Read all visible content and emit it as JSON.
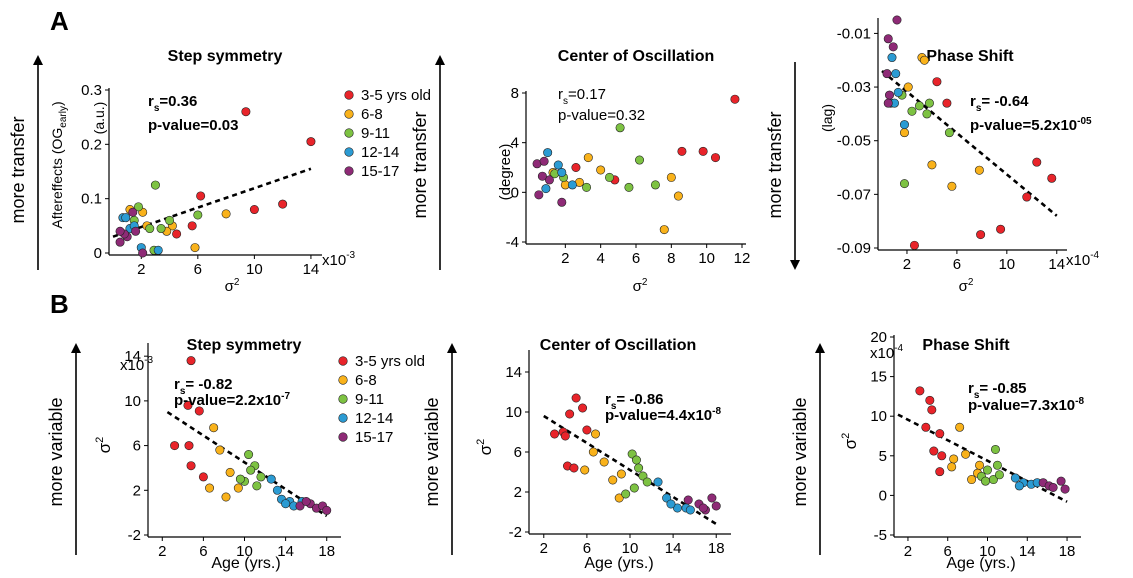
{
  "panel_letters": {
    "a": "A",
    "b": "B"
  },
  "row_a_arrow_labels": {
    "left": "more transfer",
    "middle": "more transfer",
    "right": "more transfer"
  },
  "row_b_arrow_labels": {
    "left": "more variable",
    "middle": "more variable",
    "right": "more variable"
  },
  "legend": {
    "items": [
      {
        "label": "3-5 yrs old",
        "color": "#e8242a"
      },
      {
        "label": "6-8",
        "color": "#f9b21b"
      },
      {
        "label": "9-11",
        "color": "#7dc242"
      },
      {
        "label": "12-14",
        "color": "#2b9bd3"
      },
      {
        "label": "15-17",
        "color": "#8e2a76"
      }
    ]
  },
  "chart_data": [
    {
      "id": "a1",
      "type": "scatter",
      "title": "Step symmetry",
      "xlabel": "σ2",
      "ylabel": "Aftereffects (OGearly) (a.u.)",
      "x_multiplier": "x10-3",
      "xlim": [
        0,
        14.5
      ],
      "ylim": [
        0,
        0.3
      ],
      "xticks": [
        2,
        6,
        10,
        14
      ],
      "yticks": [
        0,
        0.1,
        0.2,
        0.3
      ],
      "xtick_labels": [
        "2",
        "6",
        "10",
        "14"
      ],
      "ytick_labels": [
        "0",
        "0.1",
        "0.2",
        "0.3"
      ],
      "stat": {
        "rs": "0.36",
        "p": "0.03",
        "p_exp": ""
      },
      "fit": [
        [
          0,
          0.03
        ],
        [
          14,
          0.155
        ]
      ],
      "points": [
        [
          9.4,
          0.26,
          0
        ],
        [
          14,
          0.205,
          0
        ],
        [
          6.2,
          0.105,
          0
        ],
        [
          12,
          0.09,
          0
        ],
        [
          10,
          0.08,
          0
        ],
        [
          5.6,
          0.05,
          0
        ],
        [
          4.5,
          0.035,
          0
        ],
        [
          1.2,
          0.08,
          1
        ],
        [
          2.1,
          0.075,
          1
        ],
        [
          4.2,
          0.05,
          1
        ],
        [
          3.8,
          0.04,
          1
        ],
        [
          8,
          0.072,
          1
        ],
        [
          5.8,
          0.01,
          1
        ],
        [
          2.4,
          0.05,
          1
        ],
        [
          3,
          0.125,
          2
        ],
        [
          1.5,
          0.06,
          2
        ],
        [
          4,
          0.06,
          2
        ],
        [
          6,
          0.07,
          2
        ],
        [
          2.6,
          0.045,
          2
        ],
        [
          1.8,
          0.085,
          2
        ],
        [
          3.4,
          0.045,
          2
        ],
        [
          2.9,
          0.005,
          2
        ],
        [
          0.7,
          0.065,
          3
        ],
        [
          1.2,
          0.045,
          3
        ],
        [
          2,
          0.01,
          3
        ],
        [
          3.2,
          0.005,
          3
        ],
        [
          0.9,
          0.065,
          3
        ],
        [
          1.5,
          0.05,
          3
        ],
        [
          0.5,
          0.02,
          4
        ],
        [
          1.0,
          0.03,
          4
        ],
        [
          1.6,
          0.04,
          4
        ],
        [
          0.8,
          0.035,
          4
        ],
        [
          1.4,
          0.075,
          4
        ],
        [
          0.5,
          0.04,
          4
        ],
        [
          2.1,
          0.0,
          4
        ]
      ]
    },
    {
      "id": "a2",
      "type": "scatter",
      "title": "Center of Oscillation",
      "xlabel": "σ2",
      "ylabel": "(degree)",
      "x_multiplier": "",
      "xlim": [
        0,
        12
      ],
      "ylim": [
        -4,
        8
      ],
      "xticks": [
        2,
        4,
        6,
        8,
        10,
        12
      ],
      "yticks": [
        -4,
        0,
        4,
        8
      ],
      "xtick_labels": [
        "2",
        "4",
        "6",
        "8",
        "10",
        "12"
      ],
      "ytick_labels": [
        "-4",
        "0",
        "4",
        "8"
      ],
      "stat": {
        "rs": "0.17",
        "p": "0.32",
        "p_exp": ""
      },
      "fit": [],
      "points": [
        [
          11.6,
          7.5,
          0
        ],
        [
          8.6,
          3.3,
          0
        ],
        [
          9.8,
          3.3,
          0
        ],
        [
          10.5,
          2.8,
          0
        ],
        [
          4.8,
          1.0,
          0
        ],
        [
          2.6,
          2.0,
          0
        ],
        [
          3.3,
          2.8,
          1
        ],
        [
          1.3,
          1.6,
          1
        ],
        [
          2.0,
          0.6,
          1
        ],
        [
          2.8,
          0.8,
          1
        ],
        [
          4.0,
          1.8,
          1
        ],
        [
          7.6,
          -3.0,
          1
        ],
        [
          8.4,
          -0.3,
          1
        ],
        [
          8.0,
          1.2,
          1
        ],
        [
          5.1,
          5.2,
          2
        ],
        [
          6.2,
          2.6,
          2
        ],
        [
          4.5,
          1.2,
          2
        ],
        [
          5.6,
          0.4,
          2
        ],
        [
          7.1,
          0.6,
          2
        ],
        [
          3.2,
          0.4,
          2
        ],
        [
          1.9,
          1.2,
          2
        ],
        [
          1.4,
          1.5,
          2
        ],
        [
          1.0,
          3.2,
          3
        ],
        [
          1.6,
          2.2,
          3
        ],
        [
          2.4,
          0.6,
          3
        ],
        [
          0.9,
          0.3,
          3
        ],
        [
          1.8,
          1.6,
          3
        ],
        [
          0.4,
          2.3,
          4
        ],
        [
          0.8,
          2.5,
          4
        ],
        [
          1.1,
          1.0,
          4
        ],
        [
          0.5,
          -0.2,
          4
        ],
        [
          0.7,
          1.3,
          4
        ],
        [
          1.8,
          -0.8,
          4
        ]
      ]
    },
    {
      "id": "a3",
      "type": "scatter",
      "title": "Phase Shift",
      "xlabel": "σ2",
      "ylabel": "(lag)",
      "x_multiplier": "x10-4",
      "xlim": [
        0,
        14.5
      ],
      "ylim": [
        -0.09,
        -0.005
      ],
      "xticks": [
        2,
        6,
        10,
        14
      ],
      "yticks": [
        -0.09,
        -0.07,
        -0.05,
        -0.03,
        -0.01
      ],
      "xtick_labels": [
        "2",
        "6",
        "10",
        "14"
      ],
      "ytick_labels": [
        "-0.09",
        "-0.07",
        "-0.05",
        "-0.03",
        "-0.01"
      ],
      "stat": {
        "rs": "-0.64",
        "p": "5.2x10",
        "p_exp": "-05"
      },
      "fit": [
        [
          0,
          -0.024
        ],
        [
          14,
          -0.078
        ]
      ],
      "points": [
        [
          2.6,
          -0.089,
          0
        ],
        [
          7.9,
          -0.085,
          0
        ],
        [
          9.5,
          -0.083,
          0
        ],
        [
          12.4,
          -0.058,
          0
        ],
        [
          13.6,
          -0.064,
          0
        ],
        [
          11.6,
          -0.071,
          0
        ],
        [
          5.2,
          -0.036,
          0
        ],
        [
          4.4,
          -0.028,
          0
        ],
        [
          3.2,
          -0.019,
          1
        ],
        [
          3.4,
          -0.02,
          1
        ],
        [
          2.1,
          -0.03,
          1
        ],
        [
          4.0,
          -0.059,
          1
        ],
        [
          5.6,
          -0.067,
          1
        ],
        [
          7.8,
          -0.061,
          1
        ],
        [
          1.8,
          -0.047,
          1
        ],
        [
          1.8,
          -0.066,
          2
        ],
        [
          3.6,
          -0.04,
          2
        ],
        [
          3.8,
          -0.036,
          2
        ],
        [
          5.4,
          -0.047,
          2
        ],
        [
          2.4,
          -0.039,
          2
        ],
        [
          1.6,
          -0.033,
          2
        ],
        [
          3.0,
          -0.037,
          2
        ],
        [
          0.7,
          -0.036,
          3
        ],
        [
          1.1,
          -0.025,
          3
        ],
        [
          0.8,
          -0.019,
          3
        ],
        [
          1.8,
          -0.044,
          3
        ],
        [
          1.3,
          -0.032,
          3
        ],
        [
          1.0,
          -0.036,
          3
        ],
        [
          0.5,
          -0.012,
          4
        ],
        [
          1.2,
          -0.005,
          4
        ],
        [
          0.4,
          -0.025,
          4
        ],
        [
          0.6,
          -0.033,
          4
        ],
        [
          0.9,
          -0.015,
          4
        ],
        [
          0.5,
          -0.036,
          4
        ]
      ]
    },
    {
      "id": "b1",
      "type": "scatter",
      "title": "Step symmetry",
      "xlabel": "Age (yrs.)",
      "ylabel": "σ2",
      "y_multiplier": "x10-3",
      "xlim": [
        1,
        19
      ],
      "ylim": [
        -2,
        15
      ],
      "xticks": [
        2,
        6,
        10,
        14,
        18
      ],
      "yticks": [
        -2,
        2,
        6,
        10,
        14
      ],
      "xtick_labels": [
        "2",
        "6",
        "10",
        "14",
        "18"
      ],
      "ytick_labels": [
        "-2",
        "2",
        "6",
        "10",
        "14"
      ],
      "stat": {
        "rs": "-0.82",
        "p": "2.2x10",
        "p_exp": "-7"
      },
      "fit": [
        [
          2.5,
          9.0
        ],
        [
          18,
          -0.3
        ]
      ],
      "points": [
        [
          4.8,
          13.6,
          0
        ],
        [
          4.5,
          9.6,
          0
        ],
        [
          5.6,
          9.1,
          0
        ],
        [
          3.2,
          6.0,
          0
        ],
        [
          4.6,
          6.0,
          0
        ],
        [
          4.8,
          4.2,
          0
        ],
        [
          6.0,
          3.2,
          0
        ],
        [
          7.0,
          7.6,
          1
        ],
        [
          7.6,
          5.6,
          1
        ],
        [
          6.6,
          2.2,
          1
        ],
        [
          8.6,
          3.6,
          1
        ],
        [
          9.4,
          2.2,
          1
        ],
        [
          8.2,
          1.4,
          1
        ],
        [
          10.4,
          5.2,
          2
        ],
        [
          11.0,
          4.2,
          2
        ],
        [
          10.0,
          2.8,
          2
        ],
        [
          11.6,
          3.2,
          2
        ],
        [
          10.6,
          3.8,
          2
        ],
        [
          9.6,
          3.0,
          2
        ],
        [
          11.2,
          2.4,
          2
        ],
        [
          12.6,
          3.0,
          3
        ],
        [
          13.2,
          2.0,
          3
        ],
        [
          14.4,
          1.0,
          3
        ],
        [
          14.8,
          0.6,
          3
        ],
        [
          15.6,
          1.0,
          3
        ],
        [
          13.6,
          1.2,
          3
        ],
        [
          14.0,
          0.8,
          3
        ],
        [
          15.4,
          0.6,
          4
        ],
        [
          16.4,
          0.8,
          4
        ],
        [
          17.0,
          0.4,
          4
        ],
        [
          17.6,
          0.6,
          4
        ],
        [
          18.0,
          0.2,
          4
        ],
        [
          16.0,
          1.0,
          4
        ]
      ]
    },
    {
      "id": "b2",
      "type": "scatter",
      "title": "Center of Oscillation",
      "xlabel": "Age (yrs.)",
      "ylabel": "σ2",
      "y_multiplier": "",
      "xlim": [
        1,
        19
      ],
      "ylim": [
        -2,
        16
      ],
      "xticks": [
        2,
        6,
        10,
        14,
        18
      ],
      "yticks": [
        -2,
        2,
        6,
        10,
        14
      ],
      "xtick_labels": [
        "2",
        "6",
        "10",
        "14",
        "18"
      ],
      "ytick_labels": [
        "-2",
        "2",
        "6",
        "10",
        "14"
      ],
      "stat": {
        "rs": "-0.86",
        "p": "4.4x10",
        "p_exp": "-8"
      },
      "fit": [
        [
          2,
          9.6
        ],
        [
          18,
          -1.2
        ]
      ],
      "points": [
        [
          5.0,
          11.4,
          0
        ],
        [
          4.4,
          9.8,
          0
        ],
        [
          5.6,
          10.4,
          0
        ],
        [
          3.0,
          7.8,
          0
        ],
        [
          3.8,
          8.0,
          0
        ],
        [
          4.2,
          4.6,
          0
        ],
        [
          4.8,
          4.4,
          0
        ],
        [
          4.0,
          7.6,
          0
        ],
        [
          6.0,
          8.2,
          0
        ],
        [
          6.8,
          7.8,
          1
        ],
        [
          6.6,
          6.0,
          1
        ],
        [
          7.6,
          5.0,
          1
        ],
        [
          9.2,
          3.8,
          1
        ],
        [
          8.4,
          3.2,
          1
        ],
        [
          9.0,
          1.4,
          1
        ],
        [
          5.8,
          4.2,
          1
        ],
        [
          10.2,
          5.8,
          2
        ],
        [
          10.6,
          5.2,
          2
        ],
        [
          10.8,
          4.4,
          2
        ],
        [
          11.2,
          3.6,
          2
        ],
        [
          11.6,
          3.0,
          2
        ],
        [
          10.4,
          2.4,
          2
        ],
        [
          9.6,
          1.8,
          2
        ],
        [
          12.6,
          3.0,
          3
        ],
        [
          13.4,
          1.4,
          3
        ],
        [
          14.4,
          0.4,
          3
        ],
        [
          15.2,
          0.4,
          3
        ],
        [
          13.8,
          0.8,
          3
        ],
        [
          15.6,
          0.2,
          3
        ],
        [
          15.4,
          1.2,
          4
        ],
        [
          16.4,
          0.8,
          4
        ],
        [
          17.0,
          0.2,
          4
        ],
        [
          18.0,
          0.6,
          4
        ],
        [
          17.6,
          1.4,
          4
        ],
        [
          16.8,
          0.4,
          4
        ]
      ]
    },
    {
      "id": "b3",
      "type": "scatter",
      "title": "Phase Shift",
      "xlabel": "Age (yrs.)",
      "ylabel": "σ2",
      "y_multiplier": "x10-4",
      "xlim": [
        1,
        19
      ],
      "ylim": [
        -5,
        20
      ],
      "xticks": [
        2,
        6,
        10,
        14,
        18
      ],
      "yticks": [
        -5,
        0,
        5,
        10,
        15,
        20
      ],
      "xtick_labels": [
        "2",
        "6",
        "10",
        "14",
        "18"
      ],
      "ytick_labels": [
        "-5",
        "0",
        "5",
        "10",
        "15",
        "20"
      ],
      "stat": {
        "rs": "-0.85",
        "p": "7.3x10",
        "p_exp": "-8"
      },
      "fit": [
        [
          1,
          10.2
        ],
        [
          18,
          -0.8
        ]
      ],
      "points": [
        [
          3.2,
          13.2,
          0
        ],
        [
          4.2,
          12.0,
          0
        ],
        [
          4.4,
          10.8,
          0
        ],
        [
          3.8,
          8.6,
          0
        ],
        [
          5.2,
          7.8,
          0
        ],
        [
          4.6,
          5.6,
          0
        ],
        [
          5.4,
          5.0,
          0
        ],
        [
          5.2,
          3.0,
          0
        ],
        [
          7.2,
          8.6,
          1
        ],
        [
          6.6,
          4.6,
          1
        ],
        [
          7.8,
          5.2,
          1
        ],
        [
          6.4,
          3.6,
          1
        ],
        [
          9.2,
          3.8,
          1
        ],
        [
          9.0,
          2.8,
          1
        ],
        [
          8.4,
          2.0,
          1
        ],
        [
          10.8,
          5.8,
          2
        ],
        [
          10.0,
          3.2,
          2
        ],
        [
          9.4,
          2.4,
          2
        ],
        [
          10.6,
          2.0,
          2
        ],
        [
          11.2,
          2.6,
          2
        ],
        [
          11.0,
          3.8,
          2
        ],
        [
          9.8,
          1.8,
          2
        ],
        [
          12.8,
          2.2,
          3
        ],
        [
          13.6,
          1.6,
          3
        ],
        [
          14.4,
          1.4,
          3
        ],
        [
          15.0,
          1.6,
          3
        ],
        [
          13.2,
          1.2,
          3
        ],
        [
          15.6,
          1.6,
          4
        ],
        [
          16.2,
          1.2,
          4
        ],
        [
          17.4,
          1.8,
          4
        ],
        [
          17.8,
          0.8,
          4
        ],
        [
          16.6,
          1.0,
          4
        ]
      ]
    }
  ]
}
